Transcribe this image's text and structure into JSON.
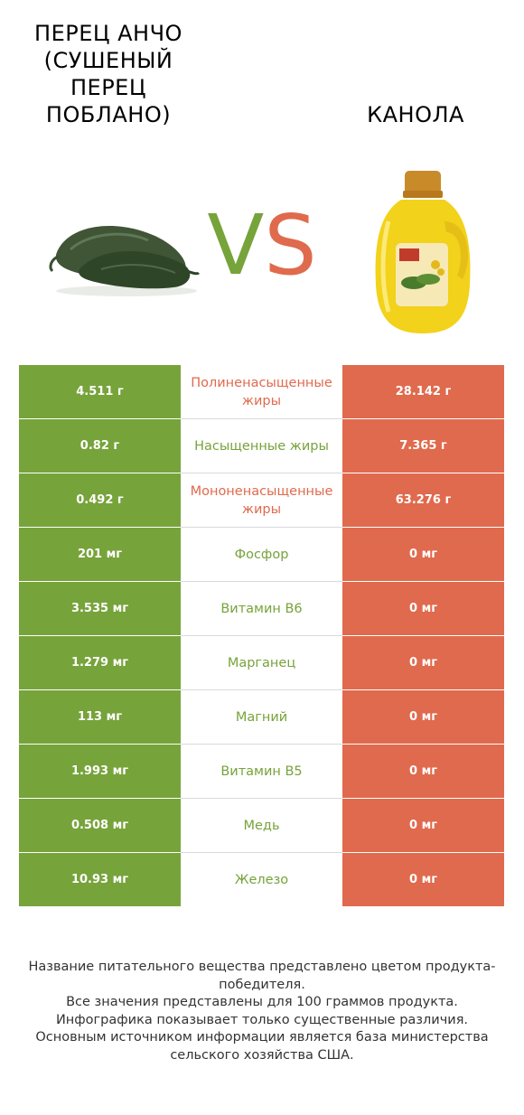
{
  "header": {
    "left_title": "ПЕРЕЦ АНЧО (СУШЕНЫЙ ПЕРЕЦ ПОБЛАНО)",
    "right_title": "КАНОЛА",
    "vs_v": "V",
    "vs_s": "S"
  },
  "colors": {
    "winner_left": "#77a33b",
    "winner_right": "#e06a4d"
  },
  "chart_data": {
    "type": "table",
    "series": [
      {
        "name": "ПЕРЕЦ АНЧО (СУШЕНЫЙ ПЕРЕЦ ПОБЛАНО)"
      },
      {
        "name": "КАНОЛА"
      }
    ],
    "rows": [
      {
        "nutrient": "Полиненасыщенные жиры",
        "left": "4.511 г",
        "right": "28.142 г",
        "winner": "right"
      },
      {
        "nutrient": "Насыщенные жиры",
        "left": "0.82 г",
        "right": "7.365 г",
        "winner": "left"
      },
      {
        "nutrient": "Мононенасыщенные жиры",
        "left": "0.492 г",
        "right": "63.276 г",
        "winner": "right"
      },
      {
        "nutrient": "Фосфор",
        "left": "201 мг",
        "right": "0 мг",
        "winner": "left"
      },
      {
        "nutrient": "Витамин B6",
        "left": "3.535 мг",
        "right": "0 мг",
        "winner": "left"
      },
      {
        "nutrient": "Марганец",
        "left": "1.279 мг",
        "right": "0 мг",
        "winner": "left"
      },
      {
        "nutrient": "Магний",
        "left": "113 мг",
        "right": "0 мг",
        "winner": "left"
      },
      {
        "nutrient": "Витамин B5",
        "left": "1.993 мг",
        "right": "0 мг",
        "winner": "left"
      },
      {
        "nutrient": "Медь",
        "left": "0.508 мг",
        "right": "0 мг",
        "winner": "left"
      },
      {
        "nutrient": "Железо",
        "left": "10.93 мг",
        "right": "0 мг",
        "winner": "left"
      }
    ]
  },
  "footer": {
    "line1": "Название питательного вещества представлено цветом продукта-победителя.",
    "line2": "Все значения представлены для 100 граммов продукта.",
    "line3": "Инфографика показывает только существенные различия.",
    "line4": "Основным источником информации является база министерства сельского хозяйства США."
  }
}
